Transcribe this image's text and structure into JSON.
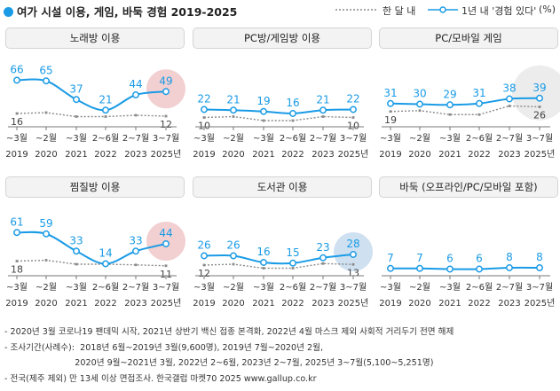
{
  "title": "여가 시설 이용, 게임, 바둑 경험 2019-2025",
  "legend": {
    "series_monthly": "한 달 내",
    "series_yearly": "1년 내 '경험 있다'",
    "unit": "(%)"
  },
  "colors": {
    "yearly": "#1a9be6",
    "monthly": "#8a8a8a",
    "highlight_red": "#f2cfd0",
    "highlight_blue": "#cfe0f1",
    "highlight_gray": "#ececec"
  },
  "chart_data": [
    {
      "type": "line",
      "title": "노래방 이용",
      "xlabel_top": [
        "~3월",
        "~2월",
        "~3월",
        "2~6월",
        "2~7월",
        "3~7월"
      ],
      "xlabel_bottom": [
        "2019",
        "2020",
        "2021",
        "2022",
        "2023",
        "2025년"
      ],
      "series": [
        {
          "name": "1년 내 '경험 있다'",
          "values": [
            66,
            65,
            37,
            21,
            44,
            49
          ],
          "labels": [
            "66",
            "65",
            "37",
            "21",
            "44",
            "49"
          ]
        },
        {
          "name": "한 달 내",
          "values": [
            16,
            null,
            null,
            null,
            null,
            12
          ],
          "labels": [
            "16",
            "",
            "",
            "",
            "",
            "12"
          ]
        }
      ],
      "highlight": "red",
      "ylim": [
        0,
        100
      ]
    },
    {
      "type": "line",
      "title": "PC방/게임방 이용",
      "xlabel_top": [
        "~3월",
        "~2월",
        "~3월",
        "2~6월",
        "2~7월",
        "3~7월"
      ],
      "xlabel_bottom": [
        "2019",
        "2020",
        "2021",
        "2022",
        "2023",
        "2025년"
      ],
      "series": [
        {
          "name": "1년 내 '경험 있다'",
          "values": [
            22,
            21,
            19,
            16,
            21,
            22
          ],
          "labels": [
            "22",
            "21",
            "19",
            "16",
            "21",
            "22"
          ]
        },
        {
          "name": "한 달 내",
          "values": [
            10,
            null,
            null,
            null,
            null,
            10
          ],
          "labels": [
            "10",
            "",
            "",
            "",
            "",
            "10"
          ]
        }
      ],
      "highlight": "none",
      "ylim": [
        0,
        100
      ]
    },
    {
      "type": "line",
      "title": "PC/모바일 게임",
      "xlabel_top": [
        "~3월",
        "~2월",
        "~3월",
        "2~6월",
        "2~7월",
        "3~7월"
      ],
      "xlabel_bottom": [
        "2019",
        "2020",
        "2021",
        "2022",
        "2023",
        "2025년"
      ],
      "series": [
        {
          "name": "1년 내 '경험 있다'",
          "values": [
            31,
            30,
            29,
            31,
            38,
            39
          ],
          "labels": [
            "31",
            "30",
            "29",
            "31",
            "38",
            "39"
          ]
        },
        {
          "name": "한 달 내",
          "values": [
            19,
            null,
            null,
            null,
            null,
            26
          ],
          "labels": [
            "19",
            "",
            "",
            "",
            "",
            "26"
          ]
        }
      ],
      "highlight": "gray",
      "ylim": [
        0,
        100
      ]
    },
    {
      "type": "line",
      "title": "찜질방 이용",
      "xlabel_top": [
        "~3월",
        "~2월",
        "~3월",
        "2~6월",
        "2~7월",
        "3~7월"
      ],
      "xlabel_bottom": [
        "2019",
        "2020",
        "2021",
        "2022",
        "2023",
        "2025년"
      ],
      "series": [
        {
          "name": "1년 내 '경험 있다'",
          "values": [
            61,
            59,
            33,
            14,
            33,
            44
          ],
          "labels": [
            "61",
            "59",
            "33",
            "14",
            "33",
            "44"
          ]
        },
        {
          "name": "한 달 내",
          "values": [
            18,
            null,
            null,
            null,
            null,
            11
          ],
          "labels": [
            "18",
            "",
            "",
            "",
            "",
            "11"
          ]
        }
      ],
      "highlight": "red",
      "ylim": [
        0,
        100
      ]
    },
    {
      "type": "line",
      "title": "도서관 이용",
      "xlabel_top": [
        "~3월",
        "~2월",
        "~3월",
        "2~6월",
        "2~7월",
        "3~7월"
      ],
      "xlabel_bottom": [
        "2019",
        "2020",
        "2021",
        "2022",
        "2023",
        "2025년"
      ],
      "series": [
        {
          "name": "1년 내 '경험 있다'",
          "values": [
            26,
            26,
            16,
            15,
            23,
            28
          ],
          "labels": [
            "26",
            "26",
            "16",
            "15",
            "23",
            "28"
          ]
        },
        {
          "name": "한 달 내",
          "values": [
            12,
            null,
            null,
            null,
            null,
            13
          ],
          "labels": [
            "12",
            "",
            "",
            "",
            "",
            "13"
          ]
        }
      ],
      "highlight": "blue",
      "ylim": [
        0,
        100
      ]
    },
    {
      "type": "line",
      "title": "바둑 (오프라인/PC/모바일 포함)",
      "xlabel_top": [
        "~3월",
        "~2월",
        "~3월",
        "2~6월",
        "2~7월",
        "3~7월"
      ],
      "xlabel_bottom": [
        "2019",
        "2020",
        "2021",
        "2022",
        "2023",
        "2025년"
      ],
      "series": [
        {
          "name": "1년 내 '경험 있다'",
          "values": [
            7,
            7,
            6,
            6,
            8,
            8
          ],
          "labels": [
            "7",
            "7",
            "6",
            "6",
            "8",
            "8"
          ]
        }
      ],
      "highlight": "none",
      "ylim": [
        0,
        100
      ]
    }
  ],
  "notes": [
    "- 2020년 3월 코로나19 팬데믹 시작, 2021년 상반기 백신 접종 본격화, 2022년 4월 마스크 제외 사회적 거리두기 전면 해제",
    "- 조사기간(사례수):  2018년 6월~2019년 3월(9,600명), 2019년 7월~2020년 2월,",
    "                          2020년 9월~2021년 3월, 2022년 2~6월, 2023년 2~7월, 2025년 3~7월(5,100~5,251명)",
    "- 전국(제주 제외) 만 13세 이상 면접조사. 한국갤럽 마켓70 2025 www.gallup.co.kr"
  ]
}
